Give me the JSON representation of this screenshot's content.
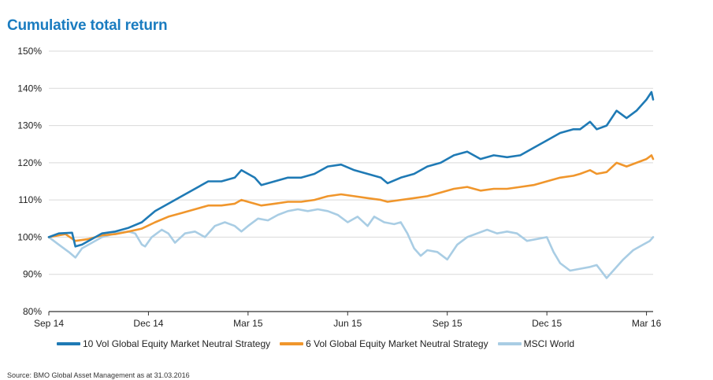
{
  "title": "Cumulative total return",
  "source": "Source: BMO Global Asset Management as at 31.03.2016",
  "colors": {
    "s1": "#1f7ab5",
    "s2": "#f0962c",
    "s3": "#a9cde4",
    "grid": "#d9d9d9",
    "axis": "#333333"
  },
  "chart_data": {
    "type": "line",
    "title": "Cumulative total return",
    "xlabel": "",
    "ylabel": "",
    "ylim": [
      80,
      150
    ],
    "yticks": [
      80,
      90,
      100,
      110,
      120,
      130,
      140,
      150
    ],
    "ytick_labels": [
      "80%",
      "90%",
      "100%",
      "110%",
      "120%",
      "130%",
      "140%",
      "150%"
    ],
    "xlim": [
      0,
      18.2
    ],
    "xticks": [
      0,
      3,
      6,
      9,
      12,
      15,
      18
    ],
    "xtick_labels": [
      "Sep 14",
      "Dec 14",
      "Mar 15",
      "Jun 15",
      "Sep 15",
      "Dec 15",
      "Mar 16"
    ],
    "grid": true,
    "series": [
      {
        "name": "10 Vol Global Equity Market Neutral Strategy",
        "color": "#1f7ab5",
        "points": [
          [
            0,
            100
          ],
          [
            0.3,
            101
          ],
          [
            0.7,
            101.2
          ],
          [
            0.8,
            97.5
          ],
          [
            1.0,
            98
          ],
          [
            1.3,
            99.5
          ],
          [
            1.6,
            101
          ],
          [
            2,
            101.5
          ],
          [
            2.4,
            102.5
          ],
          [
            2.8,
            104
          ],
          [
            3.2,
            107
          ],
          [
            3.6,
            109
          ],
          [
            4,
            111
          ],
          [
            4.4,
            113
          ],
          [
            4.8,
            115
          ],
          [
            5.2,
            115
          ],
          [
            5.6,
            116
          ],
          [
            5.8,
            118
          ],
          [
            6.2,
            116
          ],
          [
            6.4,
            114
          ],
          [
            6.8,
            115
          ],
          [
            7.2,
            116
          ],
          [
            7.6,
            116
          ],
          [
            8,
            117
          ],
          [
            8.4,
            119
          ],
          [
            8.8,
            119.5
          ],
          [
            9.2,
            118
          ],
          [
            9.6,
            117
          ],
          [
            10,
            116
          ],
          [
            10.2,
            114.5
          ],
          [
            10.6,
            116
          ],
          [
            11,
            117
          ],
          [
            11.4,
            119
          ],
          [
            11.8,
            120
          ],
          [
            12.2,
            122
          ],
          [
            12.6,
            123
          ],
          [
            13.0,
            121
          ],
          [
            13.4,
            122
          ],
          [
            13.8,
            121.5
          ],
          [
            14.2,
            122
          ],
          [
            14.6,
            124
          ],
          [
            15,
            126
          ],
          [
            15.4,
            128
          ],
          [
            15.8,
            129
          ],
          [
            16,
            129
          ],
          [
            16.3,
            131
          ],
          [
            16.5,
            129
          ],
          [
            16.8,
            130
          ],
          [
            17.1,
            134
          ],
          [
            17.4,
            132
          ],
          [
            17.7,
            134
          ],
          [
            18,
            137
          ],
          [
            18.15,
            139
          ],
          [
            18.2,
            137
          ]
        ]
      },
      {
        "name": "6 Vol Global Equity Market Neutral Strategy",
        "color": "#f0962c",
        "points": [
          [
            0,
            100
          ],
          [
            0.5,
            100.8
          ],
          [
            0.8,
            99
          ],
          [
            1.2,
            99.5
          ],
          [
            1.6,
            100.5
          ],
          [
            2,
            100.8
          ],
          [
            2.4,
            101.5
          ],
          [
            2.8,
            102.3
          ],
          [
            3.2,
            104
          ],
          [
            3.6,
            105.5
          ],
          [
            4,
            106.5
          ],
          [
            4.4,
            107.5
          ],
          [
            4.8,
            108.5
          ],
          [
            5.2,
            108.5
          ],
          [
            5.6,
            109
          ],
          [
            5.8,
            110
          ],
          [
            6.2,
            109
          ],
          [
            6.4,
            108.5
          ],
          [
            6.8,
            109
          ],
          [
            7.2,
            109.5
          ],
          [
            7.6,
            109.5
          ],
          [
            8,
            110
          ],
          [
            8.4,
            111
          ],
          [
            8.8,
            111.5
          ],
          [
            9.2,
            111
          ],
          [
            9.6,
            110.5
          ],
          [
            10,
            110
          ],
          [
            10.2,
            109.5
          ],
          [
            10.6,
            110
          ],
          [
            11,
            110.5
          ],
          [
            11.4,
            111
          ],
          [
            11.8,
            112
          ],
          [
            12.2,
            113
          ],
          [
            12.6,
            113.5
          ],
          [
            13.0,
            112.5
          ],
          [
            13.4,
            113
          ],
          [
            13.8,
            113
          ],
          [
            14.2,
            113.5
          ],
          [
            14.6,
            114
          ],
          [
            15,
            115
          ],
          [
            15.4,
            116
          ],
          [
            15.8,
            116.5
          ],
          [
            16,
            117
          ],
          [
            16.3,
            118
          ],
          [
            16.5,
            117
          ],
          [
            16.8,
            117.5
          ],
          [
            17.1,
            120
          ],
          [
            17.4,
            119
          ],
          [
            17.7,
            120
          ],
          [
            18,
            121
          ],
          [
            18.15,
            122
          ],
          [
            18.2,
            121
          ]
        ]
      },
      {
        "name": "MSCI World",
        "color": "#a9cde4",
        "points": [
          [
            0,
            100
          ],
          [
            0.3,
            98
          ],
          [
            0.6,
            96
          ],
          [
            0.8,
            94.5
          ],
          [
            1,
            97
          ],
          [
            1.3,
            98.5
          ],
          [
            1.6,
            100
          ],
          [
            2,
            101
          ],
          [
            2.4,
            101.5
          ],
          [
            2.6,
            101
          ],
          [
            2.8,
            98
          ],
          [
            2.9,
            97.5
          ],
          [
            3.1,
            100
          ],
          [
            3.4,
            102
          ],
          [
            3.6,
            101
          ],
          [
            3.8,
            98.5
          ],
          [
            4.1,
            101
          ],
          [
            4.4,
            101.5
          ],
          [
            4.7,
            100
          ],
          [
            5,
            103
          ],
          [
            5.3,
            104
          ],
          [
            5.6,
            103
          ],
          [
            5.8,
            101.5
          ],
          [
            6,
            103
          ],
          [
            6.3,
            105
          ],
          [
            6.6,
            104.5
          ],
          [
            6.9,
            106
          ],
          [
            7.2,
            107
          ],
          [
            7.5,
            107.5
          ],
          [
            7.8,
            107
          ],
          [
            8.1,
            107.5
          ],
          [
            8.4,
            107
          ],
          [
            8.7,
            106
          ],
          [
            9,
            104
          ],
          [
            9.3,
            105.5
          ],
          [
            9.6,
            103
          ],
          [
            9.8,
            105.5
          ],
          [
            10.1,
            104
          ],
          [
            10.4,
            103.5
          ],
          [
            10.6,
            104
          ],
          [
            10.8,
            101
          ],
          [
            11,
            97
          ],
          [
            11.2,
            95
          ],
          [
            11.4,
            96.5
          ],
          [
            11.7,
            96
          ],
          [
            12,
            94
          ],
          [
            12.3,
            98
          ],
          [
            12.6,
            100
          ],
          [
            12.9,
            101
          ],
          [
            13.2,
            102
          ],
          [
            13.5,
            101
          ],
          [
            13.8,
            101.5
          ],
          [
            14.1,
            101
          ],
          [
            14.4,
            99
          ],
          [
            14.7,
            99.5
          ],
          [
            15,
            100
          ],
          [
            15.2,
            96
          ],
          [
            15.4,
            93
          ],
          [
            15.7,
            91
          ],
          [
            16,
            91.5
          ],
          [
            16.3,
            92
          ],
          [
            16.5,
            92.5
          ],
          [
            16.8,
            89
          ],
          [
            17,
            91
          ],
          [
            17.3,
            94
          ],
          [
            17.6,
            96.5
          ],
          [
            17.9,
            98
          ],
          [
            18.1,
            99
          ],
          [
            18.2,
            100
          ]
        ]
      }
    ]
  }
}
